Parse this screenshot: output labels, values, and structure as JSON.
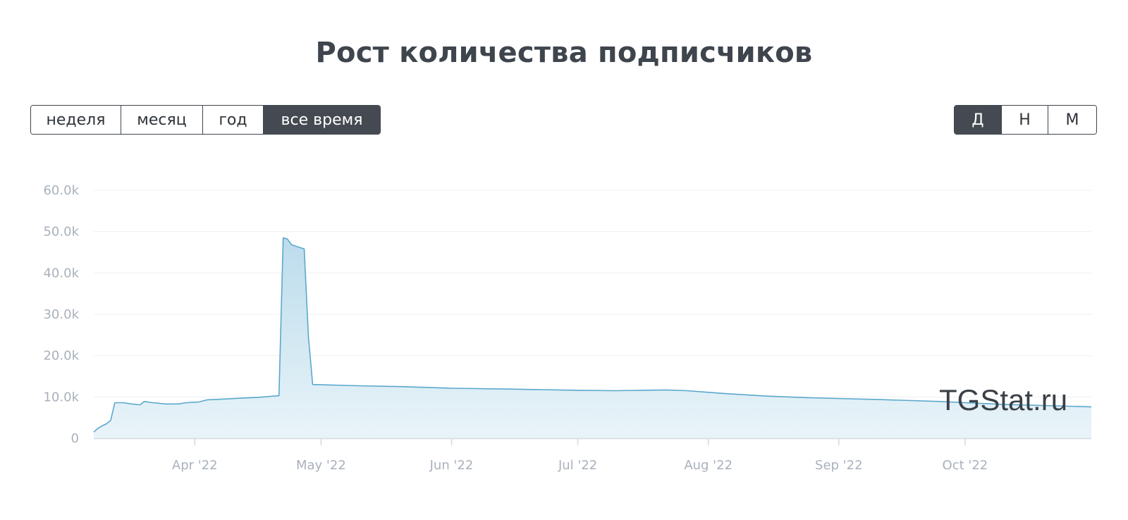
{
  "title": "Рост количества подписчиков",
  "range_buttons": [
    {
      "label": "неделя",
      "active": false
    },
    {
      "label": "месяц",
      "active": false
    },
    {
      "label": "год",
      "active": false
    },
    {
      "label": "все время",
      "active": true
    }
  ],
  "aggregation_buttons": [
    {
      "label": "Д",
      "active": true
    },
    {
      "label": "Н",
      "active": false
    },
    {
      "label": "М",
      "active": false
    }
  ],
  "watermark": "TGStat.ru",
  "colors": {
    "line": "#5ba8cc",
    "fill_top": "#bcdcec",
    "fill_bottom": "#e9f4f9",
    "grid": "#eef0f2",
    "axis": "#d4d9df",
    "button_active_bg": "#454a52"
  },
  "chart_data": {
    "type": "area",
    "title": "",
    "xlabel": "",
    "ylabel": "",
    "ylim": [
      0,
      60000
    ],
    "y_ticks": [
      {
        "value": 0,
        "label": "0"
      },
      {
        "value": 10000,
        "label": "10.0k"
      },
      {
        "value": 20000,
        "label": "20.0k"
      },
      {
        "value": 30000,
        "label": "30.0k"
      },
      {
        "value": 40000,
        "label": "40.0k"
      },
      {
        "value": 50000,
        "label": "50.0k"
      },
      {
        "value": 60000,
        "label": "60.0k"
      }
    ],
    "xlim": [
      "2022-03-08",
      "2022-10-31"
    ],
    "x_ticks": [
      {
        "date": "2022-04-01",
        "label": "Apr '22"
      },
      {
        "date": "2022-05-01",
        "label": "May '22"
      },
      {
        "date": "2022-06-01",
        "label": "Jun '22"
      },
      {
        "date": "2022-07-01",
        "label": "Jul '22"
      },
      {
        "date": "2022-08-01",
        "label": "Aug '22"
      },
      {
        "date": "2022-09-01",
        "label": "Sep '22"
      },
      {
        "date": "2022-10-01",
        "label": "Oct '22"
      }
    ],
    "grid": true,
    "legend": "none",
    "series": [
      {
        "points": [
          [
            "2022-03-08",
            1500
          ],
          [
            "2022-03-09",
            2400
          ],
          [
            "2022-03-10",
            3000
          ],
          [
            "2022-03-11",
            3500
          ],
          [
            "2022-03-12",
            4300
          ],
          [
            "2022-03-13",
            8600
          ],
          [
            "2022-03-15",
            8600
          ],
          [
            "2022-03-17",
            8300
          ],
          [
            "2022-03-19",
            8100
          ],
          [
            "2022-03-20",
            8900
          ],
          [
            "2022-03-22",
            8600
          ],
          [
            "2022-03-25",
            8300
          ],
          [
            "2022-03-28",
            8300
          ],
          [
            "2022-03-30",
            8600
          ],
          [
            "2022-04-02",
            8800
          ],
          [
            "2022-04-04",
            9300
          ],
          [
            "2022-04-08",
            9500
          ],
          [
            "2022-04-12",
            9700
          ],
          [
            "2022-04-16",
            9900
          ],
          [
            "2022-04-21",
            10300
          ],
          [
            "2022-04-22",
            48500
          ],
          [
            "2022-04-23",
            48200
          ],
          [
            "2022-04-24",
            46800
          ],
          [
            "2022-04-27",
            45800
          ],
          [
            "2022-04-28",
            24500
          ],
          [
            "2022-04-29",
            13000
          ],
          [
            "2022-05-10",
            12700
          ],
          [
            "2022-05-20",
            12500
          ],
          [
            "2022-06-01",
            12100
          ],
          [
            "2022-06-15",
            11900
          ],
          [
            "2022-07-01",
            11600
          ],
          [
            "2022-07-10",
            11500
          ],
          [
            "2022-07-16",
            11600
          ],
          [
            "2022-07-22",
            11700
          ],
          [
            "2022-07-27",
            11500
          ],
          [
            "2022-08-05",
            10800
          ],
          [
            "2022-08-15",
            10200
          ],
          [
            "2022-08-25",
            9800
          ],
          [
            "2022-09-10",
            9400
          ],
          [
            "2022-09-25",
            8900
          ],
          [
            "2022-10-10",
            8200
          ],
          [
            "2022-10-31",
            7600
          ]
        ]
      }
    ]
  }
}
